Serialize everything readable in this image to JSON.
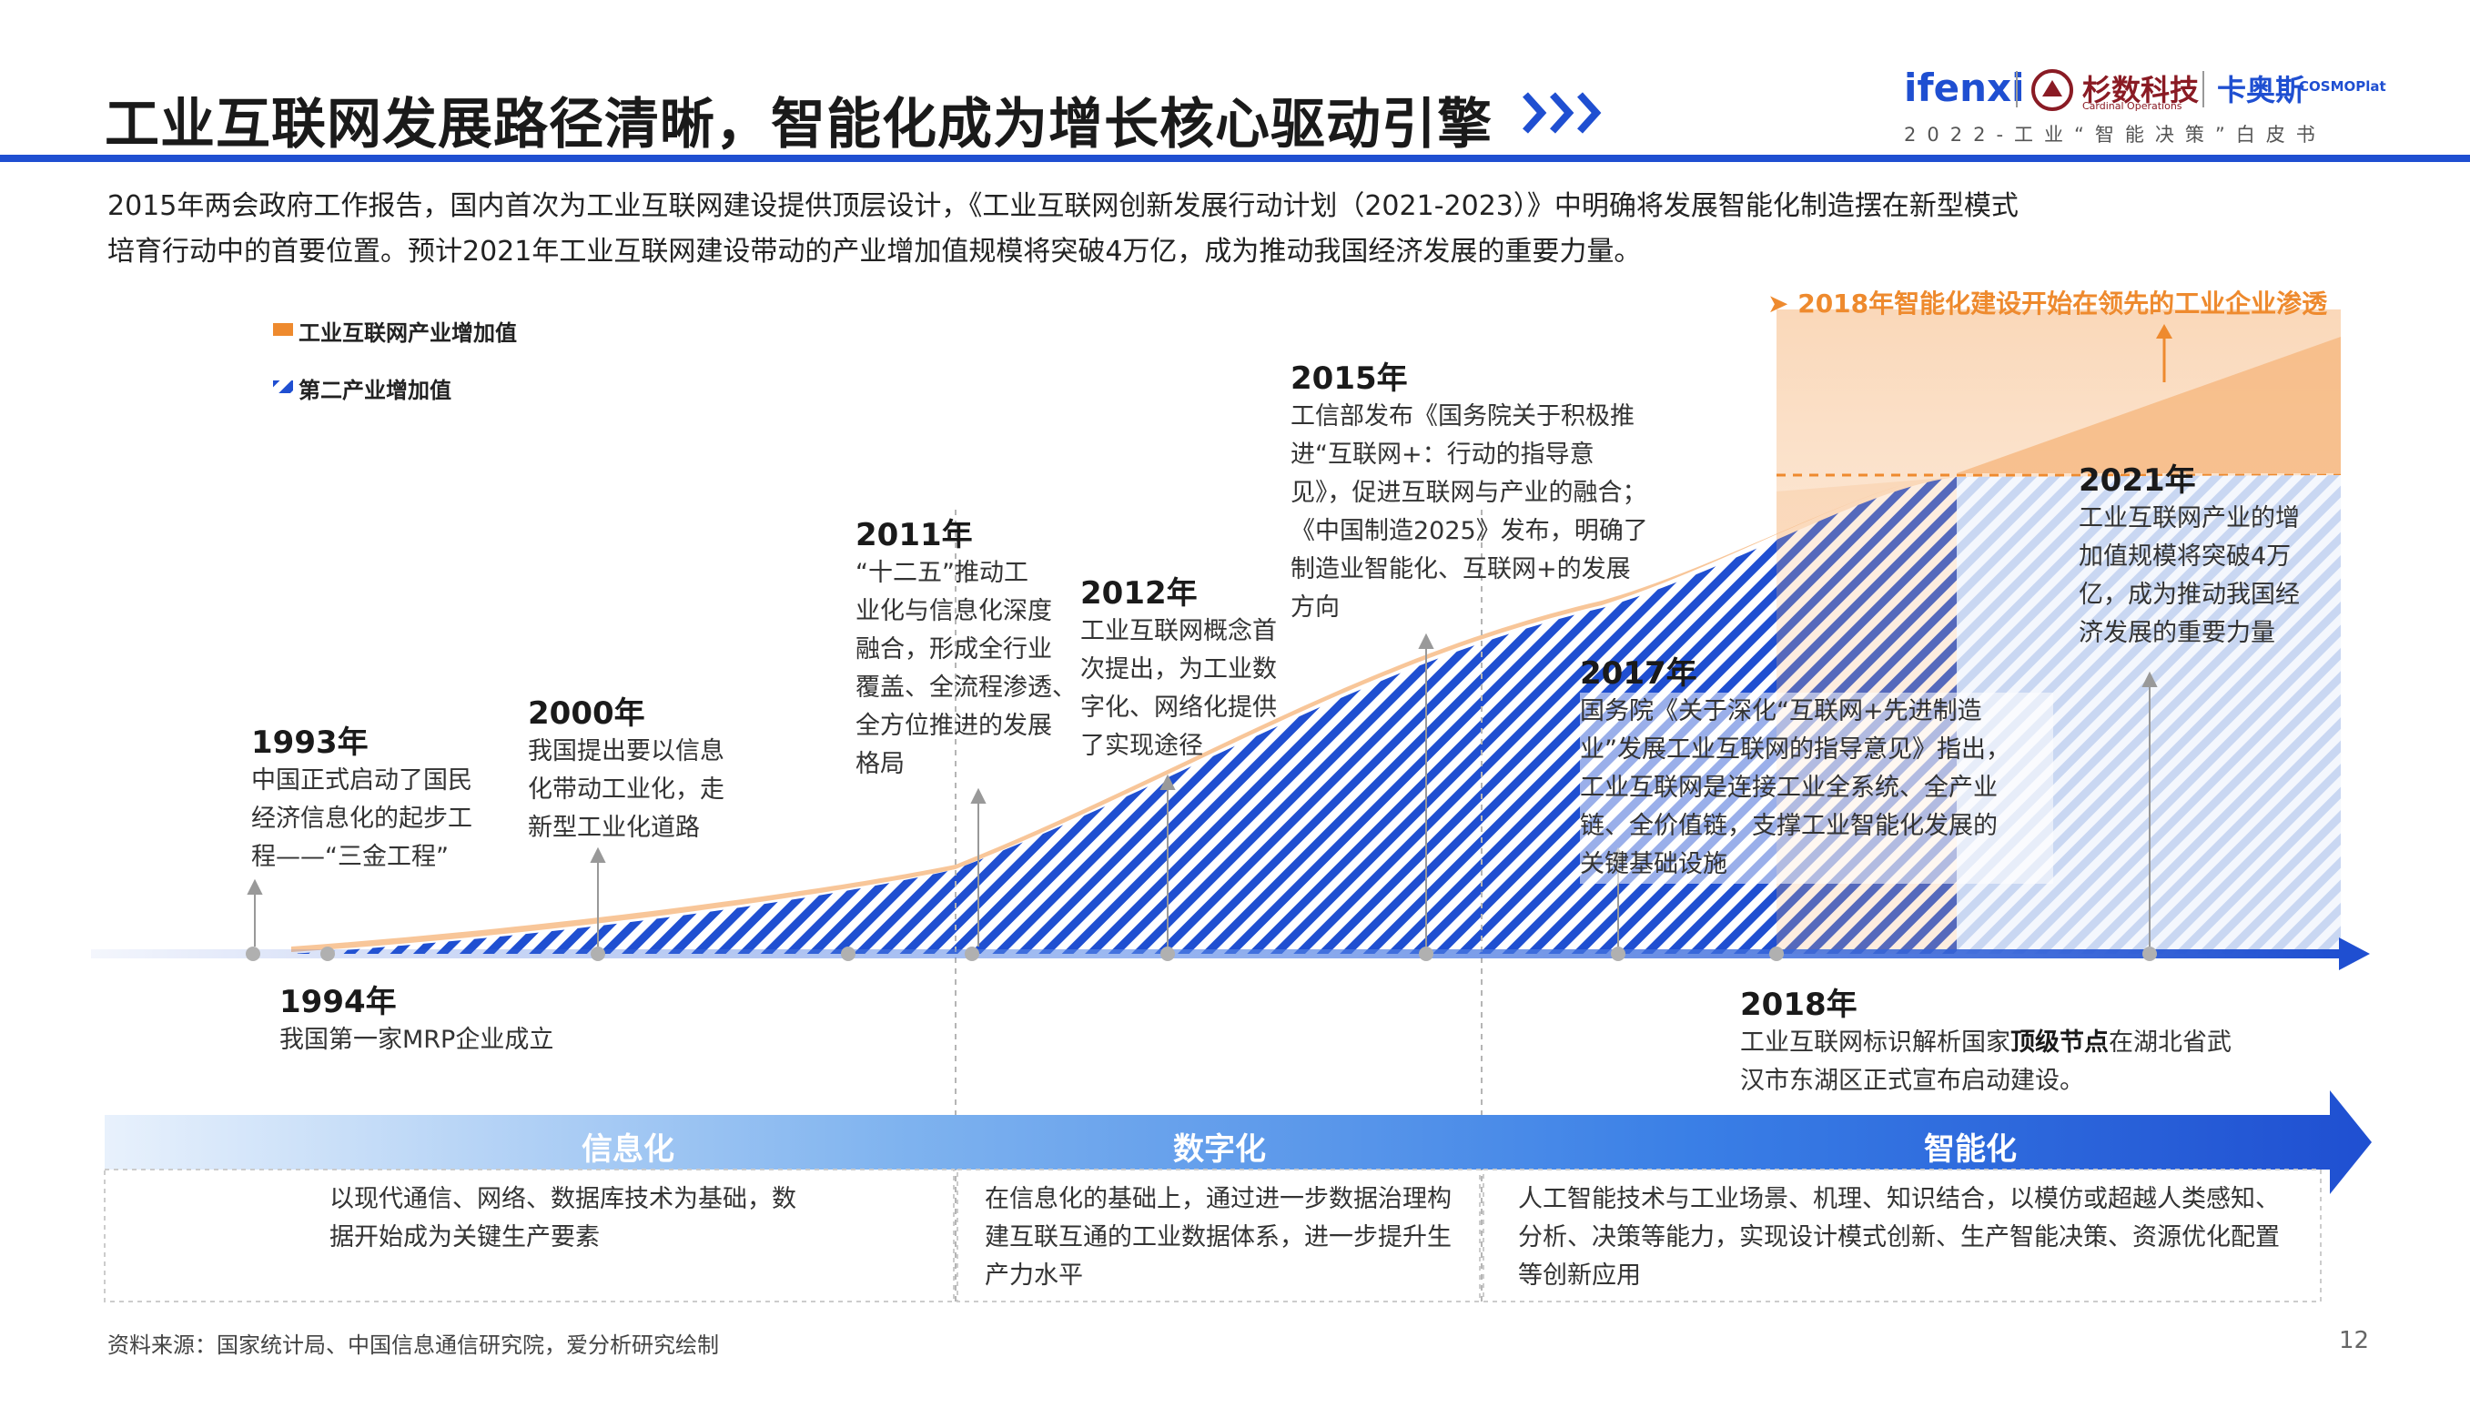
{
  "header": {
    "title": "工业互联网发展路径清晰，智能化成为增长核心驱动引擎",
    "brand_ifenxi": "ifenxi",
    "brand_shanshu": "杉数科技",
    "brand_shanshu_sub": "Cardinal Operations",
    "brand_kaos": "卡奥斯",
    "brand_cosmo": "COSMOPlat",
    "subtitle": "2022-工业“智能决策”白皮书"
  },
  "intro": {
    "line1": "2015年两会政府工作报告，国内首次为工业互联网建设提供顶层设计，《工业互联网创新发展行动计划（2021-2023）》中明确将发展智能化制造摆在新型模式",
    "line2": "培育行动中的首要位置。预计2021年工业互联网建设带动的产业增加值规模将突破4万亿，成为推动我国经济发展的重要力量。"
  },
  "legend": {
    "internet": "工业互联网产业增加值",
    "secondary": "第二产业增加值"
  },
  "callout": "2018年智能化建设开始在领先的工业企业渗透",
  "events": {
    "e1993": {
      "year": "1993年",
      "l1": "中国正式启动了国民",
      "l2": "经济信息化的起步工",
      "l3": "程——“三金工程”"
    },
    "e1994": {
      "year": "1994年",
      "l1": "我国第一家MRP企业成立"
    },
    "e2000": {
      "year": "2000年",
      "l1": "我国提出要以信息",
      "l2": "化带动工业化，走",
      "l3": "新型工业化道路"
    },
    "e2011": {
      "year": "2011年",
      "l1": "“十二五”推动工",
      "l2": "业化与信息化深度",
      "l3": "融合，形成全行业",
      "l4": "覆盖、全流程渗透、",
      "l5": "全方位推进的发展",
      "l6": "格局"
    },
    "e2012": {
      "year": "2012年",
      "l1": "工业互联网概念首",
      "l2": "次提出，为工业数",
      "l3": "字化、网络化提供",
      "l4": "了实现途径"
    },
    "e2015": {
      "year": "2015年",
      "l1": "工信部发布《国务院关于积极推",
      "l2": "进“互联网+：行动的指导意",
      "l3": "见》，促进互联网与产业的融合；",
      "l4": "《中国制造2025》发布，明确了",
      "l5": "制造业智能化、互联网+的发展",
      "l6": "方向"
    },
    "e2017": {
      "year": "2017年",
      "l1": "国务院《关于深化“互联网+先进制造",
      "l2": "业”发展工业互联网的指导意见》指出，",
      "l3": "工业互联网是连接工业全系统、全产业",
      "l4": "链、全价值链，支撑工业智能化发展的",
      "l5": "关键基础设施"
    },
    "e2018": {
      "year": "2018年",
      "l1a": "工业互联网标识解析国家",
      "l1b": "顶级节点",
      "l1c": "在湖北省武",
      "l2": "汉市东湖区正式宣布启动建设。"
    },
    "e2021": {
      "year": "2021年",
      "l1": "工业互联网产业的增",
      "l2": "加值规模将突破4万",
      "l3": "亿，成为推动我国经",
      "l4": "济发展的重要力量"
    }
  },
  "phases": [
    {
      "label": "信息化",
      "l1": "以现代通信、网络、数据库技术为基础，数",
      "l2": "据开始成为关键生产要素",
      "l3": ""
    },
    {
      "label": "数字化",
      "l1": "在信息化的基础上，通过进一步数据治理构",
      "l2": "建互联互通的工业数据体系，进一步提升生",
      "l3": "产力水平"
    },
    {
      "label": "智能化",
      "l1": "人工智能技术与工业场景、机理、知识结合，以模仿或超越人类感知、",
      "l2": "分析、决策等能力，实现设计模式创新、生产智能决策、资源优化配置",
      "l3": "等创新应用"
    }
  ],
  "footer": {
    "source": "资料来源：国家统计局、中国信息通信研究院，爱分析研究绘制",
    "page": "12"
  },
  "colors": {
    "blue": "#1f4fd1",
    "orange": "#ee8a2e",
    "light_blue": "#cfdcf5"
  },
  "icons": [
    "chevron-right-icon",
    "arrow-up-icon",
    "arrow-right-icon"
  ]
}
